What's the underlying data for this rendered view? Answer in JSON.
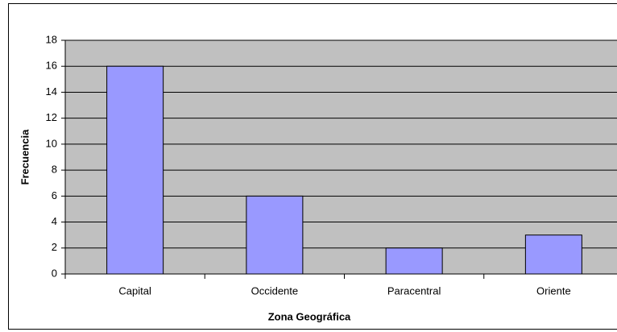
{
  "chart_data": {
    "type": "bar",
    "categories": [
      "Capital",
      "Occidente",
      "Paracentral",
      "Oriente"
    ],
    "values": [
      16,
      6,
      2,
      3
    ],
    "color": "#9999ff",
    "xlabel": "Zona Geográfica",
    "ylabel": "Frecuencia",
    "ylim": [
      0,
      18
    ],
    "yticks": [
      0,
      2,
      4,
      6,
      8,
      10,
      12,
      14,
      16,
      18
    ],
    "grid": true
  }
}
